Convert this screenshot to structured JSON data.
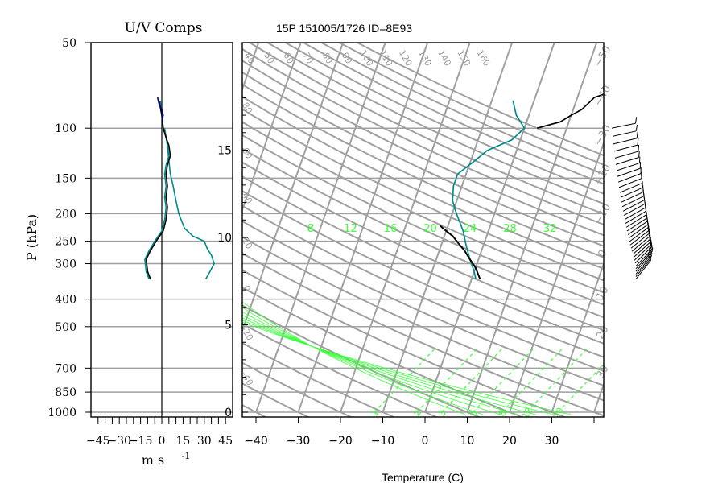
{
  "chart_data": [
    {
      "type": "line",
      "title": "U/V Comps",
      "xlabel": "m s",
      "xlabel_exp": "-1",
      "ylabel": "P (hPa)",
      "xlim": [
        -50,
        50
      ],
      "ylim": [
        1020,
        50
      ],
      "y_scale": "log",
      "x_tick_labels": [
        "−45",
        "−30",
        "−15",
        "0",
        "15",
        "30",
        "45"
      ],
      "x_tick_values": [
        -45,
        -30,
        -15,
        0,
        15,
        30,
        45
      ],
      "y_tick_labels": [
        "50",
        "100",
        "150",
        "200",
        "250",
        "300",
        "400",
        "500",
        "700",
        "850",
        "1000"
      ],
      "y_tick_values": [
        50,
        100,
        150,
        200,
        250,
        300,
        400,
        500,
        700,
        850,
        1000
      ],
      "grid": "horizontal at pressure ticks",
      "series": [
        {
          "color": "#008b8b",
          "points": [
            [
              -1,
              80
            ],
            [
              0,
              90
            ],
            [
              1,
              100
            ],
            [
              3,
              108
            ],
            [
              4,
              115
            ],
            [
              5,
              125
            ],
            [
              3,
              135
            ],
            [
              2,
              145
            ],
            [
              3,
              160
            ],
            [
              2,
              175
            ],
            [
              3,
              190
            ],
            [
              2,
              210
            ],
            [
              0,
              230
            ],
            [
              -5,
              250
            ],
            [
              -9,
              270
            ],
            [
              -12,
              290
            ],
            [
              -11,
              320
            ],
            [
              -9,
              340
            ]
          ]
        },
        {
          "color": "#008b8b",
          "points": [
            [
              2,
              100
            ],
            [
              4,
              115
            ],
            [
              5,
              130
            ],
            [
              6,
              145
            ],
            [
              8,
              160
            ],
            [
              10,
              180
            ],
            [
              12,
              200
            ],
            [
              16,
              225
            ],
            [
              22,
              240
            ],
            [
              30,
              250
            ],
            [
              32,
              265
            ],
            [
              35,
              280
            ],
            [
              37,
              300
            ],
            [
              34,
              320
            ],
            [
              31,
              340
            ]
          ]
        },
        {
          "color": "#000000",
          "points": [
            [
              -2,
              80
            ],
            [
              0,
              90
            ],
            [
              1,
              100
            ],
            [
              3,
              108
            ],
            [
              5,
              115
            ],
            [
              6,
              125
            ],
            [
              4,
              135
            ],
            [
              3,
              145
            ],
            [
              4,
              160
            ],
            [
              3,
              175
            ],
            [
              4,
              190
            ],
            [
              3,
              210
            ],
            [
              1,
              230
            ],
            [
              -4,
              250
            ],
            [
              -8,
              270
            ],
            [
              -11,
              290
            ],
            [
              -10,
              320
            ],
            [
              -8,
              340
            ]
          ]
        },
        {
          "color": "#00008b",
          "points": [
            [
              -3,
              78
            ],
            [
              -2,
              82
            ],
            [
              0,
              86
            ],
            [
              1,
              90
            ],
            [
              0,
              94
            ]
          ]
        }
      ]
    },
    {
      "type": "line",
      "title": "15P 151005/1726 ID=8E93",
      "xlabel": "Temperature (C)",
      "xlim": [
        -44,
        40
      ],
      "x_tick_labels": [
        "−40",
        "−30",
        "−20",
        "−10",
        "0",
        "10",
        "20",
        "30"
      ],
      "x_tick_values": [
        -40,
        -30,
        -20,
        -10,
        0,
        10,
        20,
        30
      ],
      "height_axis_labels": [
        "15",
        "10",
        "5",
        "0"
      ],
      "height_axis_values": [
        15,
        10,
        5,
        0
      ],
      "isotherm_labels": [
        "−50",
        "−40",
        "−30",
        "−20",
        "−10",
        "0",
        "10",
        "20",
        "30"
      ],
      "isotherm_values": [
        -50,
        -40,
        -30,
        -20,
        -10,
        0,
        10,
        20,
        30
      ],
      "theta_labels": [
        "40",
        "50",
        "60",
        "70",
        "80",
        "90",
        "100",
        "110",
        "120",
        "130",
        "140",
        "150",
        "160"
      ],
      "theta_left_labels": [
        "80",
        "60",
        "40",
        "20",
        "0",
        "-20",
        "-40"
      ],
      "theta_e_labels": [
        "8",
        "12",
        "16",
        "20",
        "24",
        "28",
        "32"
      ],
      "theta_e_values": [
        8,
        12,
        16,
        20,
        24,
        28,
        32
      ],
      "mixing_ratio_labels": [
        "1",
        "2",
        "3",
        "5",
        "8",
        "12",
        "20"
      ],
      "mixing_ratio_values": [
        1,
        2,
        3,
        5,
        8,
        12,
        20
      ],
      "colors": {
        "grid": "#a0a0a0",
        "moist": "#39ff39",
        "temperature": "#008b8b",
        "parcel": "#000000"
      },
      "series": [
        {
          "name": "temperature",
          "color": "#008b8b",
          "points": [
            [
              -5,
              80
            ],
            [
              -3,
              90
            ],
            [
              0,
              100
            ],
            [
              -2,
              110
            ],
            [
              -7,
              120
            ],
            [
              -9,
              130
            ],
            [
              -12,
              145
            ],
            [
              -12,
              160
            ],
            [
              -11,
              180
            ],
            [
              -9,
              200
            ],
            [
              -6,
              230
            ],
            [
              -4,
              260
            ],
            [
              -2,
              290
            ],
            [
              0,
              320
            ],
            [
              1,
              340
            ]
          ]
        },
        {
          "name": "trace",
          "color": "#000000",
          "points": [
            [
              15,
              72
            ],
            [
              17,
              75
            ],
            [
              14,
              78
            ],
            [
              13,
              82
            ],
            [
              12,
              86
            ],
            [
              10,
              90
            ],
            [
              8,
              95
            ],
            [
              3,
              100
            ]
          ]
        },
        {
          "name": "parcel",
          "color": "#000000",
          "points": [
            [
              -12,
              220
            ],
            [
              -10,
              230
            ],
            [
              -8,
              240
            ],
            [
              -6,
              255
            ],
            [
              -4,
              270
            ],
            [
              -2,
              290
            ],
            [
              0,
              310
            ],
            [
              2,
              340
            ]
          ]
        }
      ]
    }
  ],
  "wind_barbs": {
    "count": 36,
    "top_pressure": 100,
    "bottom_pressure": 340,
    "color": "#000000"
  }
}
